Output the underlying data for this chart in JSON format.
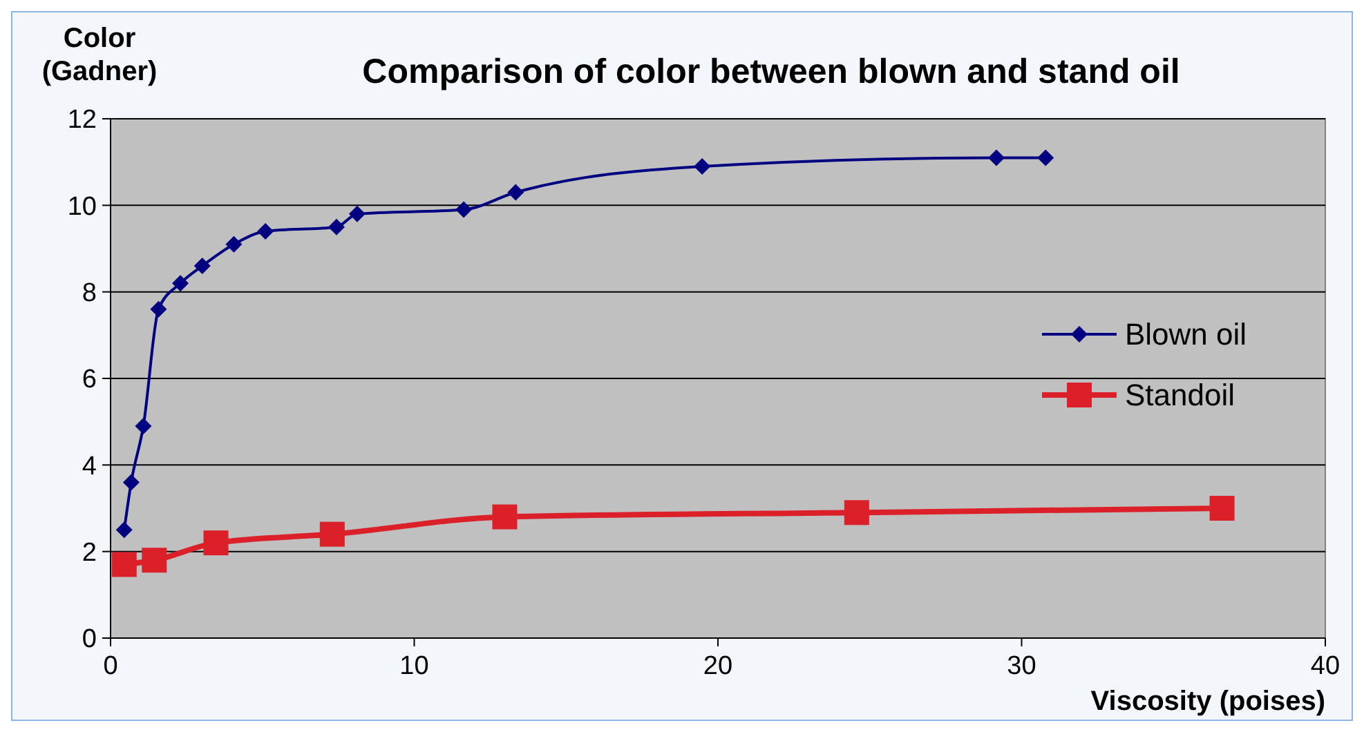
{
  "chart_data": {
    "type": "line",
    "title": "Comparison of color between blown and stand oil",
    "xlabel": "Viscosity (poises)",
    "ylabel": "Color (Gadner)",
    "xlim": [
      0,
      40
    ],
    "xticks": [
      0,
      10,
      20,
      30,
      40
    ],
    "ylim": [
      0,
      12
    ],
    "yticks": [
      0,
      2,
      4,
      6,
      8,
      10,
      12
    ],
    "grid": "y",
    "legend": "right",
    "series": [
      {
        "name": "Blown oil",
        "color": "#000080",
        "marker": "diamond",
        "x": [
          0.45,
          0.68,
          1.08,
          1.58,
          2.3,
          3.02,
          4.06,
          5.1,
          7.44,
          8.12,
          11.63,
          13.34,
          19.48,
          29.17,
          30.79
        ],
        "values": [
          2.5,
          3.6,
          4.9,
          7.6,
          8.2,
          8.6,
          9.1,
          9.4,
          9.5,
          9.8,
          9.9,
          10.3,
          10.9,
          11.1,
          11.1
        ]
      },
      {
        "name": "Standoil",
        "color": "#dc2029",
        "marker": "square",
        "x": [
          0.45,
          1.44,
          3.47,
          7.3,
          12.98,
          24.57,
          36.6
        ],
        "values": [
          1.7,
          1.8,
          2.2,
          2.4,
          2.8,
          2.9,
          3.0
        ]
      }
    ]
  }
}
